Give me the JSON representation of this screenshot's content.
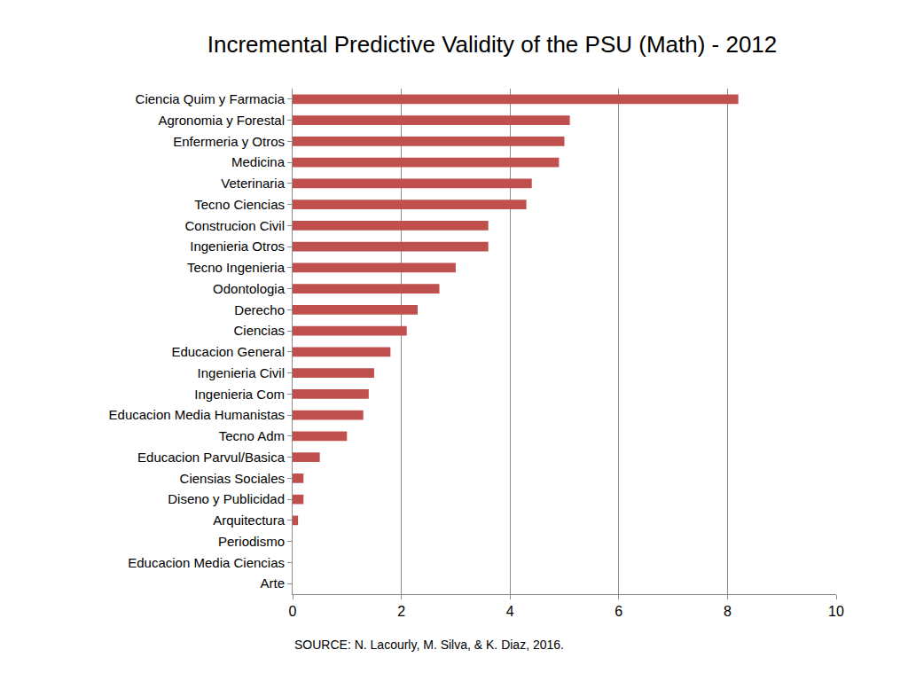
{
  "chart_data": {
    "type": "bar",
    "title": "Incremental Predictive Validity of the PSU (Math) - 2012",
    "orientation": "horizontal",
    "categories": [
      "Ciencia Quim y Farmacia",
      "Agronomia y Forestal",
      "Enfermeria y Otros",
      "Medicina",
      "Veterinaria",
      "Tecno Ciencias",
      "Construcion Civil",
      "Ingenieria Otros",
      "Tecno Ingenieria",
      "Odontologia",
      "Derecho",
      "Ciencias",
      "Educacion General",
      "Ingenieria Civil",
      "Ingenieria Com",
      "Educacion Media Humanistas",
      "Tecno Adm",
      "Educacion Parvul/Basica",
      "Ciensias Sociales",
      "Diseno y Publicidad",
      "Arquitectura",
      "Periodismo",
      "Educacion Media Ciencias",
      "Arte"
    ],
    "values": [
      8.2,
      5.1,
      5.0,
      4.9,
      4.4,
      4.3,
      3.6,
      3.6,
      3.0,
      2.7,
      2.3,
      2.1,
      1.8,
      1.5,
      1.4,
      1.3,
      1.0,
      0.5,
      0.2,
      0.2,
      0.1,
      0,
      0,
      0
    ],
    "color": "#c0504d",
    "xlim": [
      0,
      10
    ],
    "xticks": [
      0,
      2,
      4,
      6,
      8,
      10
    ],
    "grid": true,
    "annotations": [
      "SOURCE: N. Lacourly, M. Silva, & K. Diaz, 2016."
    ]
  }
}
